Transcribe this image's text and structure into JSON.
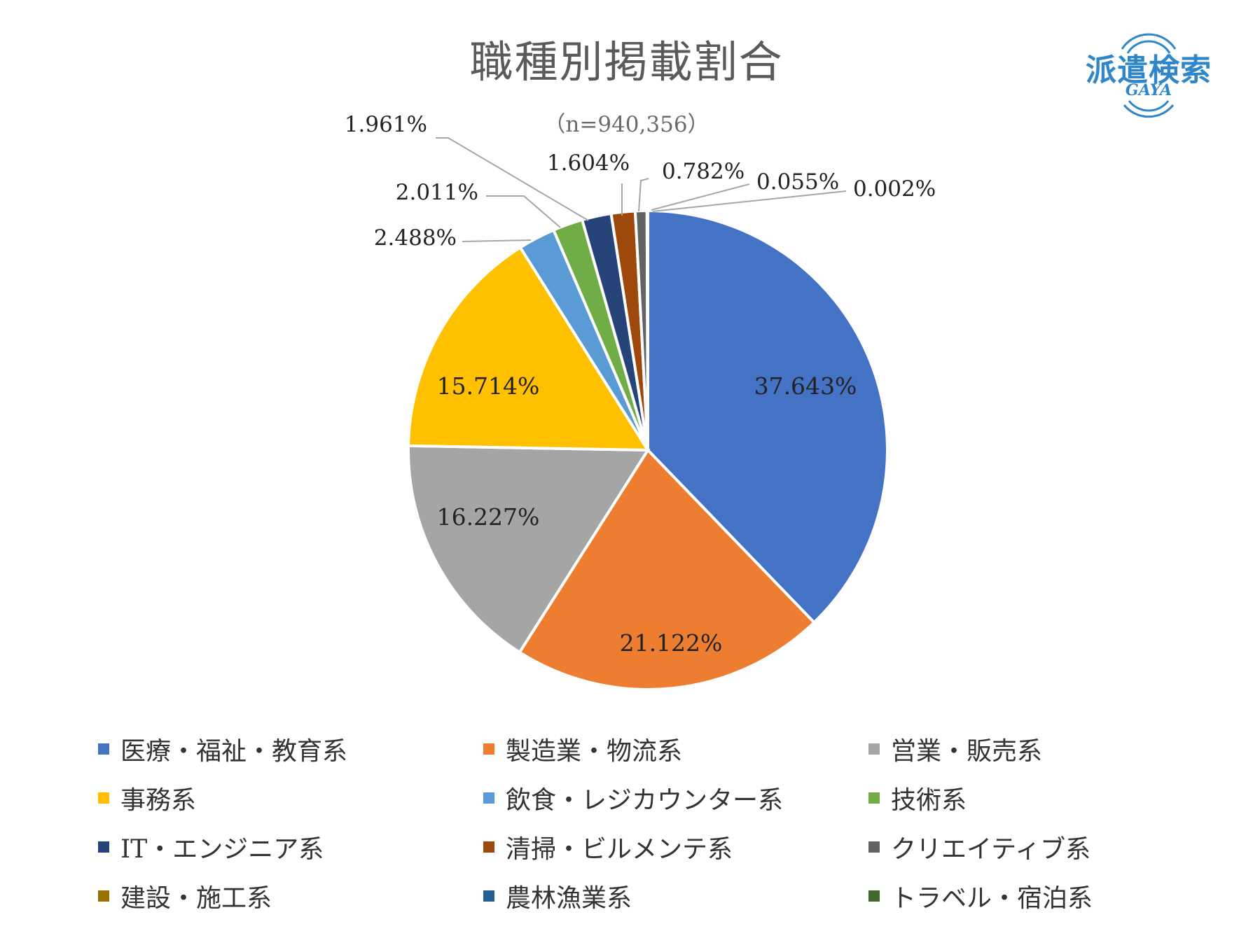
{
  "title": "職種別掲載割合",
  "subtitle": "（n=940,356）",
  "logo": {
    "text": "派遣検索",
    "sub": "GAYA",
    "color": "#2f86c8"
  },
  "chart_data": {
    "type": "pie",
    "title": "職種別掲載割合",
    "subtitle": "（n=940,356）",
    "slices": [
      {
        "label": "医療・福祉・教育系",
        "value": 37.643,
        "display": "37.643%",
        "color": "#4472c4"
      },
      {
        "label": "製造業・物流系",
        "value": 21.122,
        "display": "21.122%",
        "color": "#ed7d31"
      },
      {
        "label": "営業・販売系",
        "value": 16.227,
        "display": "16.227%",
        "color": "#a5a5a5"
      },
      {
        "label": "事務系",
        "value": 15.714,
        "display": "15.714%",
        "color": "#ffc000"
      },
      {
        "label": "飲食・レジカウンター系",
        "value": 2.488,
        "display": "2.488%",
        "color": "#5b9bd5"
      },
      {
        "label": "技術系",
        "value": 2.011,
        "display": "2.011%",
        "color": "#70ad47"
      },
      {
        "label": "IT・エンジニア系",
        "value": 1.961,
        "display": "1.961%",
        "color": "#264478"
      },
      {
        "label": "清掃・ビルメンテ系",
        "value": 1.604,
        "display": "1.604%",
        "color": "#9e480e"
      },
      {
        "label": "クリエイティブ系",
        "value": 0.782,
        "display": "0.782%",
        "color": "#636363"
      },
      {
        "label": "建設・施工系",
        "value": 0.055,
        "display": "0.055%",
        "color": "#997300"
      },
      {
        "label": "農林漁業系",
        "value": 0.002,
        "display": "0.002%",
        "color": "#255e91"
      },
      {
        "label": "トラベル・宿泊系",
        "value": 0.0,
        "display": "",
        "color": "#43682b"
      }
    ],
    "legend_position": "bottom",
    "start_angle": "12 o'clock, clockwise"
  }
}
